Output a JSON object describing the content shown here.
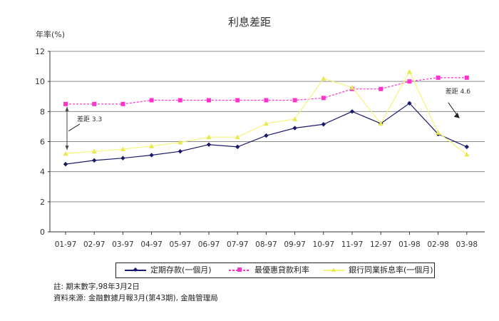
{
  "chart_data": {
    "type": "line",
    "title": "利息差距",
    "ylabel": "年率(%)",
    "xlabel": "",
    "ylim": [
      0,
      12
    ],
    "yticks": [
      0,
      2,
      4,
      6,
      8,
      10,
      12
    ],
    "grid": true,
    "legend_position": "bottom",
    "categories": [
      "01-97",
      "02-97",
      "03-97",
      "04-97",
      "05-97",
      "06-97",
      "07-97",
      "08-97",
      "09-97",
      "10-97",
      "11-97",
      "12-97",
      "01-98",
      "02-98",
      "03-98"
    ],
    "series": [
      {
        "name": "定期存款(一個月)",
        "color": "#1a1a6b",
        "marker": "diamond",
        "values": [
          4.5,
          4.75,
          4.9,
          5.1,
          5.35,
          5.8,
          5.65,
          6.4,
          6.9,
          7.15,
          8.0,
          7.2,
          8.55,
          6.5,
          5.65
        ]
      },
      {
        "name": "最優惠貸款利率",
        "color": "#ff33cc",
        "marker": "square",
        "values": [
          8.5,
          8.5,
          8.5,
          8.75,
          8.75,
          8.75,
          8.75,
          8.75,
          8.75,
          8.9,
          9.5,
          9.5,
          10.0,
          10.25,
          10.25
        ]
      },
      {
        "name": "銀行同業拆息率(一個月)",
        "color": "#f5f57a",
        "marker": "triangle",
        "values": [
          5.2,
          5.35,
          5.5,
          5.7,
          5.95,
          6.3,
          6.3,
          7.2,
          7.5,
          10.2,
          9.6,
          7.2,
          10.65,
          6.6,
          5.15
        ]
      }
    ],
    "annotations": [
      {
        "text": "差距 3.3",
        "category": "01-97"
      },
      {
        "text": "差距 4.6",
        "category": "03-98"
      }
    ]
  },
  "footnotes": {
    "note": "註: 期末數字,98年3月2日",
    "source": "資料來源: 金融數據月報3月(第43期), 金融管理局"
  }
}
